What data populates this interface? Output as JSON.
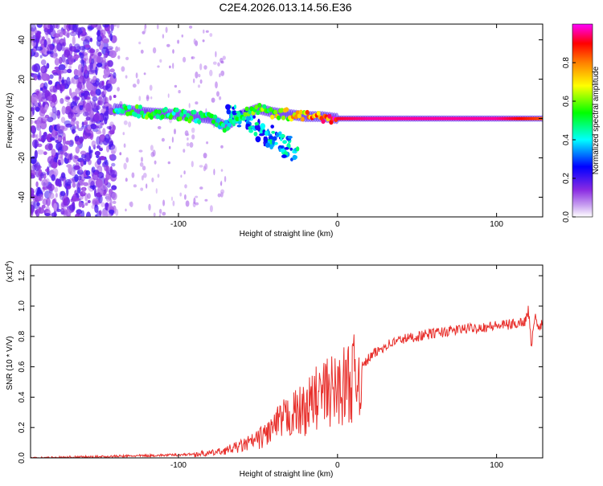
{
  "title": "C2E4.2026.013.14.56.E36",
  "chart_data": [
    {
      "type": "heatmap",
      "title": "C2E4.2026.013.14.56.E36",
      "xlabel": "Height of straight line (km)",
      "ylabel": "Frequency (Hz)",
      "xlim": [
        -193,
        129
      ],
      "ylim": [
        -50,
        48
      ],
      "xticks": [
        -100,
        0,
        100
      ],
      "yticks": [
        -40,
        -20,
        0,
        20,
        40
      ],
      "colorbar": {
        "label": "Normalized spectral amplitude",
        "range": [
          0,
          1
        ],
        "ticks": [
          0.0,
          0.2,
          0.4,
          0.6,
          0.8
        ],
        "tick_labels": [
          "0.0",
          "0.2",
          "0.4",
          "0.6",
          "0.8"
        ],
        "colors": [
          "#ffffff",
          "#8a2be2",
          "#0000ff",
          "#00ffff",
          "#00ff00",
          "#ffff00",
          "#ff8000",
          "#ff0000",
          "#ff00ff"
        ]
      },
      "noise_region": {
        "x_from": -193,
        "x_to": -140,
        "freq_from": -50,
        "freq_to": 48
      },
      "signal_trace": {
        "x": [
          -140,
          -120,
          -100,
          -80,
          -70,
          -60,
          -50,
          -40,
          -30,
          -20,
          -10,
          0,
          20,
          50,
          100,
          129
        ],
        "freq": [
          5,
          3,
          2,
          0,
          -4,
          2,
          5,
          3,
          2,
          1,
          1,
          0,
          0,
          0,
          0,
          0
        ],
        "amplitude": [
          0.45,
          0.5,
          0.5,
          0.45,
          0.45,
          0.5,
          0.55,
          0.6,
          0.65,
          0.75,
          0.85,
          0.9,
          0.95,
          0.95,
          0.95,
          0.8
        ]
      },
      "scatter_branch": {
        "x_from": -70,
        "x_to": -25,
        "freq_from": 5,
        "freq_to": -18
      }
    },
    {
      "type": "line",
      "xlabel": "Height of straight line (km)",
      "ylabel": "SNR (10 * V/V)",
      "y_scale_label": "(x10",
      "y_scale_exponent": "4",
      "xlim": [
        -193,
        129
      ],
      "ylim": [
        0.0,
        1.27
      ],
      "xticks": [
        -100,
        0,
        100
      ],
      "yticks": [
        0.0,
        0.2,
        0.4,
        0.6,
        0.8,
        1.0,
        1.2
      ],
      "ytick_labels": [
        "0.0",
        "0.2",
        "0.4",
        "0.6",
        "0.8",
        "1.0",
        "1.2"
      ],
      "series": [
        {
          "name": "SNR",
          "color": "#e8302c",
          "x": [
            -193,
            -160,
            -140,
            -120,
            -100,
            -80,
            -70,
            -60,
            -50,
            -40,
            -30,
            -20,
            -15,
            -10,
            0,
            10,
            20,
            30,
            40,
            60,
            80,
            100,
            110,
            118,
            120,
            122,
            124,
            126,
            129
          ],
          "values": [
            0.0,
            0.005,
            0.01,
            0.015,
            0.02,
            0.03,
            0.05,
            0.08,
            0.12,
            0.2,
            0.28,
            0.32,
            0.38,
            0.42,
            0.45,
            0.52,
            0.66,
            0.74,
            0.78,
            0.82,
            0.85,
            0.87,
            0.88,
            0.9,
            0.98,
            0.72,
            0.95,
            0.85,
            0.9
          ]
        }
      ]
    }
  ]
}
